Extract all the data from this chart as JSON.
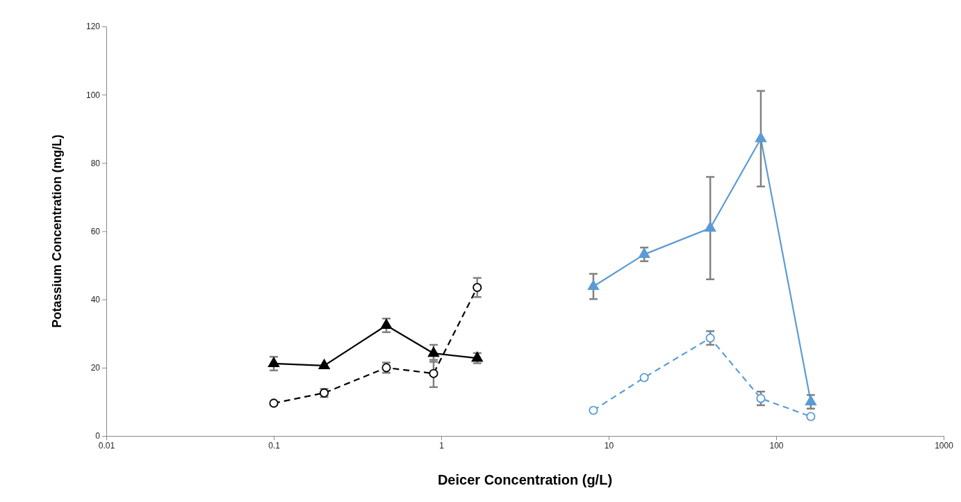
{
  "chart_data": {
    "type": "line",
    "xlabel": "Deicer Concentration (g/L)",
    "ylabel": "Potassium Concentration (mg/L)",
    "log": "x",
    "xlim": [
      0.01,
      1000
    ],
    "xticks": [
      0.01,
      0.1,
      1,
      10,
      100,
      1000
    ],
    "ylim": [
      0,
      120
    ],
    "yticks": [
      0,
      20,
      40,
      60,
      80,
      100,
      120
    ],
    "grid": false,
    "series": [
      {
        "color": "#000000",
        "marker": "circle",
        "line_style": "dashed",
        "x": [
          0.1,
          0.2,
          0.47,
          0.9,
          1.64
        ],
        "values": [
          9.6,
          12.6,
          20,
          18.3,
          43.5
        ],
        "errors": [
          null,
          1.2,
          1.5,
          4,
          2.8
        ]
      },
      {
        "color": "#000000",
        "marker": "triangle",
        "line_style": "solid",
        "x": [
          0.1,
          0.2,
          0.47,
          0.9,
          1.64
        ],
        "values": [
          21.2,
          20.6,
          32.4,
          24.2,
          22.8
        ],
        "errors": [
          2,
          null,
          2,
          2.5,
          1.5
        ]
      },
      {
        "color": "#5b9bd5",
        "marker": "circle",
        "line_style": "dashed",
        "x": [
          8.1,
          16.3,
          40.4,
          81,
          161
        ],
        "values": [
          7.5,
          17.1,
          28.7,
          11,
          5.7
        ],
        "errors": [
          null,
          null,
          2,
          2,
          null
        ]
      },
      {
        "color": "#5b9bd5",
        "marker": "triangle",
        "line_style": "solid",
        "x": [
          8.1,
          16.3,
          40.4,
          81,
          161
        ],
        "values": [
          43.8,
          53.2,
          60.9,
          87.1,
          10
        ],
        "errors": [
          3.7,
          2,
          15,
          14,
          2
        ]
      }
    ]
  }
}
